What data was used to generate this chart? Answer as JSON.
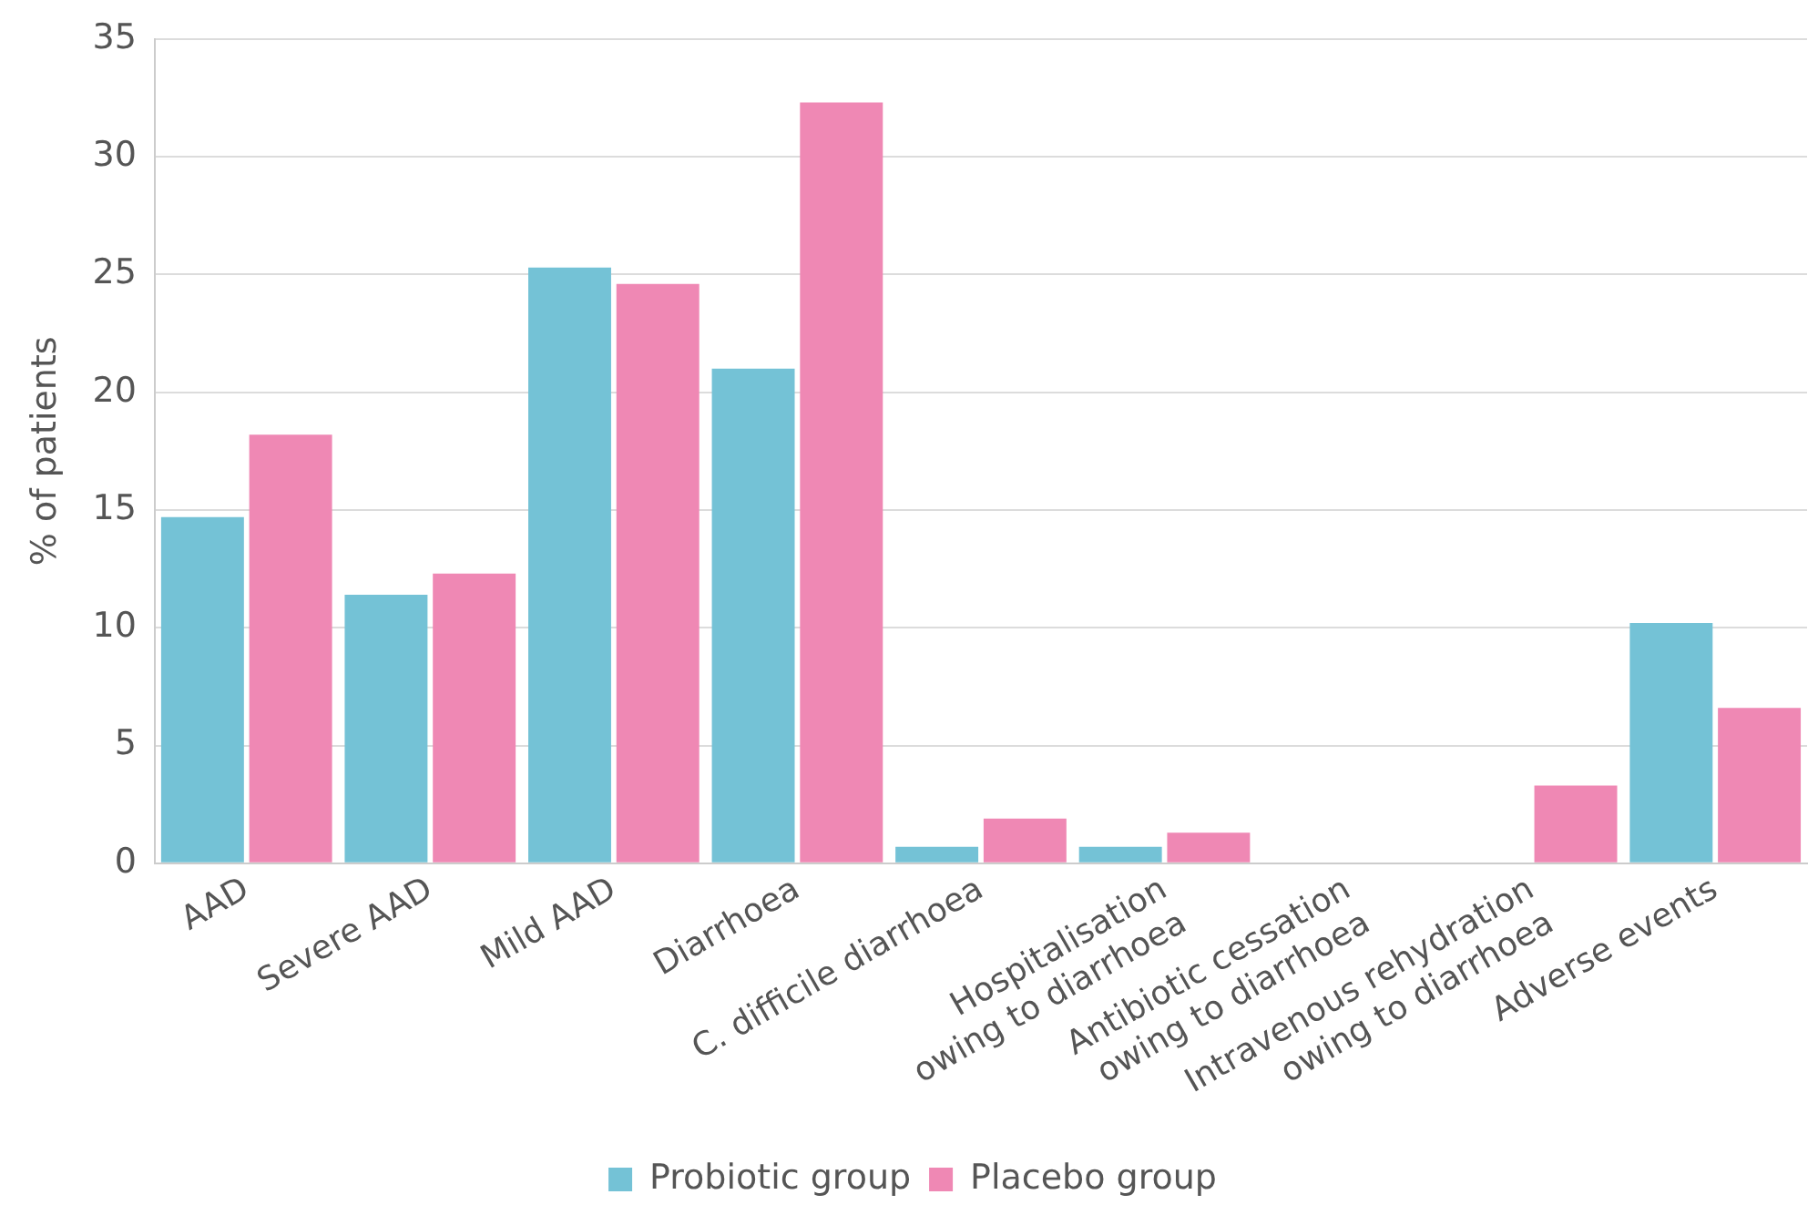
{
  "chart_data": {
    "type": "bar",
    "ylabel": "% of patients",
    "categories": [
      "AAD",
      "Severe AAD",
      "Mild AAD",
      "Diarrhoea",
      "C. difficile diarrhoea",
      "Hospitalisation\nowing to diarrhoea",
      "Antibiotic cessation\nowing to diarrhoea",
      "Intravenous rehydration\nowing to diarrhoea",
      "Adverse events"
    ],
    "series": [
      {
        "name": "Probiotic group",
        "color": "#74c2d6",
        "values": [
          14.7,
          11.4,
          25.3,
          21.0,
          0.7,
          0.7,
          0,
          0,
          10.2
        ]
      },
      {
        "name": "Placebo group",
        "color": "#ef88b4",
        "values": [
          18.2,
          12.3,
          24.6,
          32.3,
          1.9,
          1.3,
          0,
          3.3,
          6.6
        ]
      }
    ],
    "ylim": [
      0,
      35
    ],
    "yticks": [
      0,
      5,
      10,
      15,
      20,
      25,
      30,
      35
    ],
    "grid": "y",
    "legend": "bottom"
  }
}
